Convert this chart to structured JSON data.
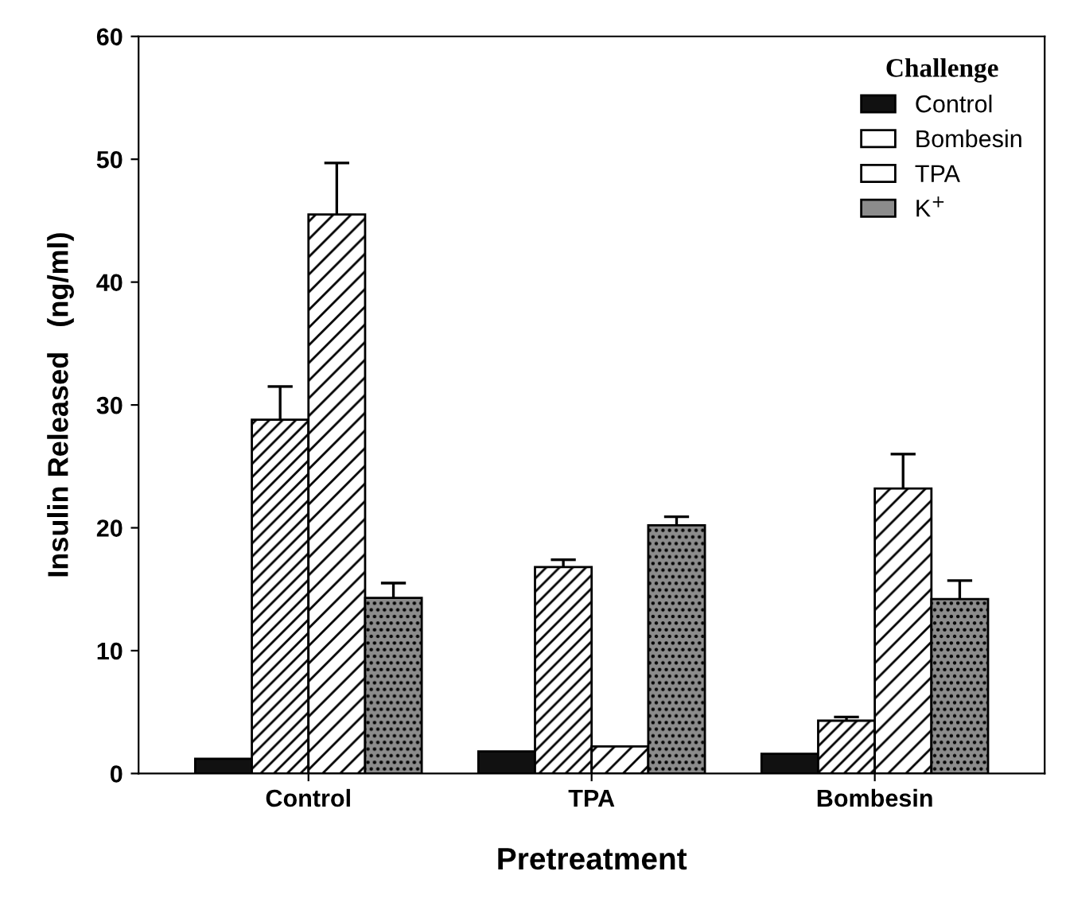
{
  "chart_data": {
    "type": "bar",
    "xlabel": "Pretreatment",
    "ylabel": "Insulin Released   (ng/ml)",
    "legend_title": "Challenge",
    "legend": "top right",
    "categories": [
      "Control",
      "TPA",
      "Bombesin"
    ],
    "series": [
      {
        "name": "Control",
        "color": "#111111",
        "values": [
          1.2,
          1.8,
          1.6
        ]
      },
      {
        "name": "Bombesin",
        "color": "#ffffff",
        "values": [
          28.8,
          16.8,
          4.3
        ],
        "errors": [
          [
            28.8,
            31.5
          ],
          [
            16.8,
            17.4
          ],
          [
            4.3,
            4.6
          ]
        ]
      },
      {
        "name": "TPA",
        "color": "#ffffff",
        "values": [
          45.5,
          2.2,
          23.2
        ],
        "errors": [
          [
            45.5,
            49.7
          ],
          null,
          [
            23.2,
            26.0
          ]
        ]
      },
      {
        "name": "K$^{+}$",
        "color": "#8c8c8c",
        "values": [
          14.3,
          20.2,
          14.2
        ],
        "errors": [
          [
            14.3,
            15.5
          ],
          [
            20.2,
            20.9
          ],
          [
            14.2,
            15.7
          ]
        ]
      }
    ],
    "ylim": [
      0,
      60
    ],
    "yticks": [
      0,
      10,
      20,
      30,
      40,
      50,
      60
    ],
    "grid": false
  }
}
